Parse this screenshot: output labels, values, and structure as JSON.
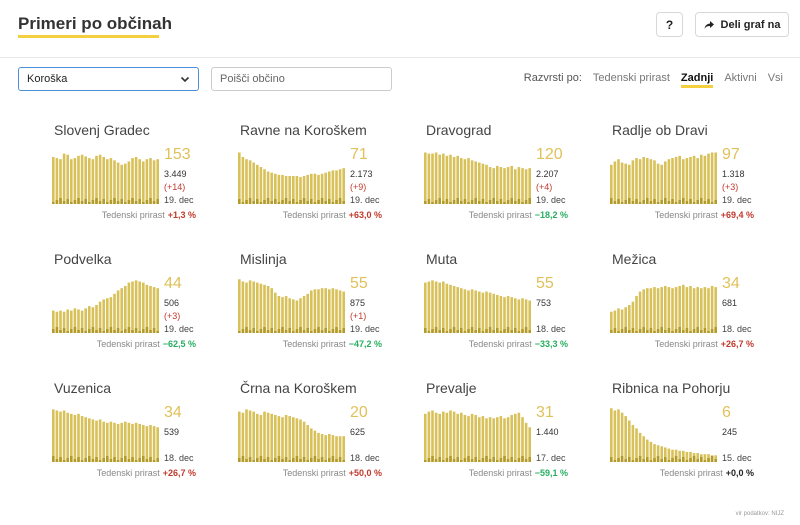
{
  "header": {
    "title": "Primeri po občinah",
    "help_label": "?",
    "share_label": "Deli graf na"
  },
  "filters": {
    "region_selected": "Koroška",
    "search_placeholder": "Poišči občino"
  },
  "sort": {
    "label": "Razvrsti po:",
    "options": [
      "Tedenski prirast",
      "Zadnji",
      "Aktivni",
      "Vsi"
    ],
    "active": "Zadnji"
  },
  "growth_label": "Tedenski prirast",
  "colors": {
    "accent": "#f4d03f",
    "bar": "#d9c15a",
    "bar_dark": "#b39b2a",
    "increase": "#c0392b",
    "decrease": "#27ae60"
  },
  "municipalities": [
    {
      "name": "Slovenj Gradec",
      "active": "153",
      "total": "3.449",
      "change": "(+14)",
      "date": "19. dec",
      "growth": "+1,3 %",
      "trend": "pos",
      "bars": [
        0.84,
        0.82,
        0.8,
        0.9,
        0.88,
        0.8,
        0.82,
        0.86,
        0.88,
        0.85,
        0.82,
        0.8,
        0.86,
        0.88,
        0.84,
        0.8,
        0.82,
        0.78,
        0.74,
        0.7,
        0.72,
        0.76,
        0.82,
        0.84,
        0.8,
        0.76,
        0.8,
        0.82,
        0.78,
        0.8
      ]
    },
    {
      "name": "Ravne na Koroškem",
      "active": "71",
      "total": "2.173",
      "change": "(+9)",
      "date": "19. dec",
      "growth": "+63,0 %",
      "trend": "pos",
      "bars": [
        0.92,
        0.84,
        0.8,
        0.78,
        0.74,
        0.7,
        0.66,
        0.62,
        0.58,
        0.56,
        0.54,
        0.52,
        0.52,
        0.5,
        0.5,
        0.5,
        0.5,
        0.48,
        0.5,
        0.52,
        0.54,
        0.54,
        0.52,
        0.54,
        0.56,
        0.58,
        0.6,
        0.6,
        0.62,
        0.64
      ]
    },
    {
      "name": "Dravograd",
      "active": "120",
      "total": "2.207",
      "change": "(+4)",
      "date": "19. dec",
      "growth": "−18,2 %",
      "trend": "neg",
      "bars": [
        0.92,
        0.9,
        0.9,
        0.92,
        0.88,
        0.9,
        0.86,
        0.88,
        0.84,
        0.86,
        0.82,
        0.8,
        0.82,
        0.78,
        0.76,
        0.74,
        0.72,
        0.7,
        0.66,
        0.64,
        0.68,
        0.66,
        0.64,
        0.66,
        0.68,
        0.62,
        0.66,
        0.64,
        0.62,
        0.64
      ]
    },
    {
      "name": "Radlje ob Dravi",
      "active": "97",
      "total": "1.318",
      "change": "(+3)",
      "date": "19. dec",
      "growth": "+69,4 %",
      "trend": "pos",
      "bars": [
        0.7,
        0.76,
        0.8,
        0.74,
        0.72,
        0.7,
        0.78,
        0.82,
        0.8,
        0.84,
        0.82,
        0.8,
        0.78,
        0.72,
        0.7,
        0.76,
        0.8,
        0.82,
        0.84,
        0.86,
        0.8,
        0.82,
        0.84,
        0.86,
        0.82,
        0.88,
        0.86,
        0.9,
        0.92,
        0.92
      ]
    },
    {
      "name": "Podvelka",
      "active": "44",
      "total": "506",
      "change": "(+3)",
      "date": "19. dec",
      "growth": "−62,5 %",
      "trend": "neg",
      "bars": [
        0.4,
        0.38,
        0.4,
        0.38,
        0.42,
        0.4,
        0.44,
        0.42,
        0.4,
        0.44,
        0.48,
        0.46,
        0.5,
        0.56,
        0.6,
        0.62,
        0.64,
        0.7,
        0.76,
        0.8,
        0.84,
        0.9,
        0.92,
        0.94,
        0.92,
        0.9,
        0.86,
        0.84,
        0.82,
        0.8
      ]
    },
    {
      "name": "Mislinja",
      "active": "55",
      "total": "875",
      "change": "(+1)",
      "date": "19. dec",
      "growth": "−47,2 %",
      "trend": "neg",
      "bars": [
        0.96,
        0.92,
        0.9,
        0.94,
        0.92,
        0.9,
        0.88,
        0.86,
        0.84,
        0.8,
        0.72,
        0.66,
        0.64,
        0.66,
        0.62,
        0.6,
        0.58,
        0.62,
        0.66,
        0.7,
        0.76,
        0.78,
        0.78,
        0.8,
        0.8,
        0.78,
        0.8,
        0.78,
        0.76,
        0.74
      ]
    },
    {
      "name": "Muta",
      "active": "55",
      "total": "753",
      "change": "",
      "date": "18. dec",
      "growth": "−33,3 %",
      "trend": "neg",
      "bars": [
        0.9,
        0.92,
        0.94,
        0.92,
        0.9,
        0.92,
        0.88,
        0.86,
        0.84,
        0.82,
        0.8,
        0.78,
        0.76,
        0.78,
        0.76,
        0.74,
        0.72,
        0.74,
        0.72,
        0.7,
        0.68,
        0.66,
        0.64,
        0.66,
        0.64,
        0.62,
        0.6,
        0.62,
        0.6,
        0.58
      ]
    },
    {
      "name": "Mežica",
      "active": "34",
      "total": "681",
      "change": "",
      "date": "18. dec",
      "growth": "+26,7 %",
      "trend": "pos",
      "bars": [
        0.38,
        0.4,
        0.44,
        0.42,
        0.46,
        0.5,
        0.56,
        0.66,
        0.74,
        0.78,
        0.8,
        0.8,
        0.82,
        0.8,
        0.82,
        0.84,
        0.82,
        0.8,
        0.82,
        0.84,
        0.86,
        0.82,
        0.84,
        0.8,
        0.82,
        0.8,
        0.82,
        0.8,
        0.84,
        0.82
      ]
    },
    {
      "name": "Vuzenica",
      "active": "34",
      "total": "539",
      "change": "",
      "date": "18. dec",
      "growth": "+26,7 %",
      "trend": "pos",
      "bars": [
        0.94,
        0.92,
        0.9,
        0.92,
        0.88,
        0.86,
        0.84,
        0.86,
        0.82,
        0.8,
        0.78,
        0.76,
        0.74,
        0.76,
        0.72,
        0.7,
        0.72,
        0.7,
        0.68,
        0.7,
        0.72,
        0.7,
        0.68,
        0.7,
        0.68,
        0.66,
        0.64,
        0.66,
        0.64,
        0.62
      ]
    },
    {
      "name": "Črna na Koroškem",
      "active": "20",
      "total": "625",
      "change": "",
      "date": "18. dec",
      "growth": "+50,0 %",
      "trend": "pos",
      "bars": [
        0.9,
        0.88,
        0.94,
        0.92,
        0.9,
        0.86,
        0.84,
        0.9,
        0.88,
        0.86,
        0.84,
        0.82,
        0.8,
        0.84,
        0.82,
        0.8,
        0.78,
        0.76,
        0.72,
        0.66,
        0.6,
        0.56,
        0.52,
        0.5,
        0.48,
        0.5,
        0.48,
        0.46,
        0.46,
        0.46
      ]
    },
    {
      "name": "Prevalje",
      "active": "31",
      "total": "1.440",
      "change": "",
      "date": "17. dec",
      "growth": "−59,1 %",
      "trend": "neg",
      "bars": [
        0.86,
        0.9,
        0.92,
        0.88,
        0.86,
        0.9,
        0.88,
        0.92,
        0.9,
        0.86,
        0.88,
        0.84,
        0.82,
        0.86,
        0.84,
        0.8,
        0.82,
        0.78,
        0.8,
        0.78,
        0.8,
        0.82,
        0.78,
        0.8,
        0.84,
        0.86,
        0.88,
        0.8,
        0.7,
        0.62
      ]
    },
    {
      "name": "Ribnica na Pohorju",
      "active": "6",
      "total": "245",
      "change": "",
      "date": "15. dec",
      "growth": "+0,0 %",
      "trend": "zero",
      "bars": [
        0.96,
        0.92,
        0.94,
        0.88,
        0.82,
        0.74,
        0.66,
        0.6,
        0.52,
        0.46,
        0.4,
        0.36,
        0.32,
        0.3,
        0.28,
        0.26,
        0.24,
        0.22,
        0.22,
        0.2,
        0.2,
        0.18,
        0.18,
        0.16,
        0.16,
        0.14,
        0.14,
        0.14,
        0.12,
        0.12
      ]
    }
  ],
  "source": "vir podatkov: NIJZ"
}
